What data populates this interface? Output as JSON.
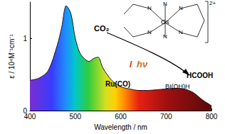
{
  "chart_data": {
    "type": "line",
    "x_label": "Wavelength / nm",
    "y_label": "ε / 10⁴M⁻¹cm⁻¹",
    "x": [
      400,
      420,
      440,
      460,
      470,
      480,
      490,
      500,
      510,
      520,
      530,
      540,
      550,
      560,
      570,
      580,
      590,
      600,
      620,
      640,
      660,
      680,
      700,
      720,
      740,
      760,
      780,
      800
    ],
    "values": [
      0.42,
      0.45,
      0.55,
      0.9,
      1.15,
      1.45,
      1.35,
      1.0,
      0.8,
      0.72,
      0.68,
      0.72,
      0.74,
      0.6,
      0.5,
      0.42,
      0.37,
      0.33,
      0.3,
      0.28,
      0.28,
      0.29,
      0.3,
      0.31,
      0.3,
      0.25,
      0.15,
      0.07
    ],
    "color": "#1a1a1a",
    "xlim": [
      400,
      800
    ],
    "xticks": [
      400,
      500,
      600,
      700,
      800
    ],
    "ylim": [
      0,
      1.5
    ],
    "yticks": [
      0,
      1
    ],
    "grid": false,
    "annotations": [
      "CO₂",
      "/",
      "hν",
      "HCOOH",
      "Ru(CO)",
      "BI(OH)H"
    ],
    "structure": {
      "metal": "Os",
      "donors": [
        "N",
        "N",
        "N",
        "N",
        "N",
        "N"
      ],
      "charge": "2+"
    }
  }
}
